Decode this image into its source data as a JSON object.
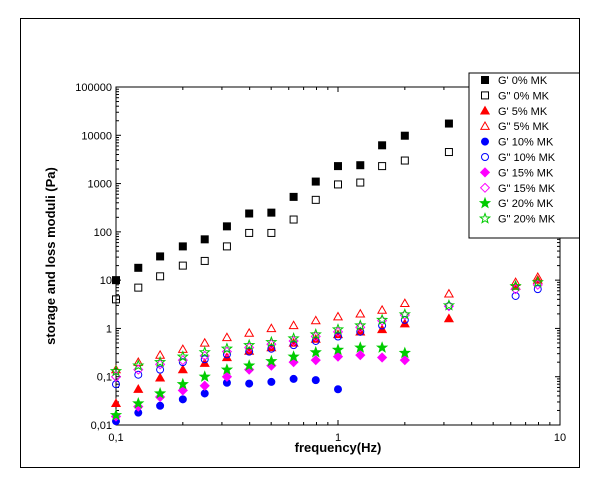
{
  "chart_data": {
    "type": "scatter",
    "title": "",
    "xlabel": "frequency(Hz)",
    "ylabel": "storage and loss moduli (Pa)",
    "x_scale": "log",
    "y_scale": "log",
    "xlim": [
      0.1,
      10
    ],
    "ylim": [
      0.01,
      100000
    ],
    "x_ticks": [
      {
        "value": 0.1,
        "label": "0,1"
      },
      {
        "value": 1,
        "label": "1"
      },
      {
        "value": 10,
        "label": "10"
      }
    ],
    "y_ticks": [
      {
        "value": 0.01,
        "label": "0,01"
      },
      {
        "value": 0.1,
        "label": "0,1"
      },
      {
        "value": 1,
        "label": "1"
      },
      {
        "value": 10,
        "label": "10"
      },
      {
        "value": 100,
        "label": "100"
      },
      {
        "value": 1000,
        "label": "1000"
      },
      {
        "value": 10000,
        "label": "10000"
      },
      {
        "value": 100000,
        "label": "100000"
      }
    ],
    "grid": false,
    "legend_position": "top-right",
    "series": [
      {
        "name": "G' 0% MK",
        "marker": "square",
        "filled": true,
        "color": "#000000",
        "x": [
          0.1,
          0.126,
          0.158,
          0.2,
          0.251,
          0.316,
          0.398,
          0.501,
          0.631,
          0.794,
          1.0,
          1.26,
          1.58,
          2.0,
          3.16
        ],
        "y": [
          10,
          18,
          31,
          50,
          70,
          130,
          240,
          250,
          530,
          1100,
          2300,
          2400,
          6200,
          9800,
          17500
        ]
      },
      {
        "name": "G\" 0% MK",
        "marker": "square",
        "filled": false,
        "color": "#000000",
        "x": [
          0.1,
          0.126,
          0.158,
          0.2,
          0.251,
          0.316,
          0.398,
          0.501,
          0.631,
          0.794,
          1.0,
          1.26,
          1.58,
          2.0,
          3.16
        ],
        "y": [
          4,
          7,
          12,
          20,
          25,
          50,
          95,
          95,
          180,
          460,
          960,
          1050,
          2300,
          3000,
          4500
        ]
      },
      {
        "name": "G' 5% MK",
        "marker": "triangle",
        "filled": true,
        "color": "#ff0000",
        "x": [
          0.1,
          0.126,
          0.158,
          0.2,
          0.251,
          0.316,
          0.398,
          0.501,
          0.631,
          0.794,
          1.0,
          1.26,
          1.58,
          2.0,
          3.16,
          6.31,
          7.94
        ],
        "y": [
          0.028,
          0.055,
          0.095,
          0.14,
          0.19,
          0.25,
          0.34,
          0.4,
          0.5,
          0.6,
          0.75,
          0.85,
          0.95,
          1.25,
          1.6,
          7.5,
          10
        ]
      },
      {
        "name": "G\" 5% MK",
        "marker": "triangle",
        "filled": false,
        "color": "#ff0000",
        "x": [
          0.1,
          0.126,
          0.158,
          0.2,
          0.251,
          0.316,
          0.398,
          0.501,
          0.631,
          0.794,
          1.0,
          1.26,
          1.58,
          2.0,
          3.16,
          6.31,
          7.94
        ],
        "y": [
          0.14,
          0.2,
          0.28,
          0.37,
          0.5,
          0.65,
          0.8,
          1.0,
          1.15,
          1.45,
          1.75,
          2.0,
          2.4,
          3.3,
          5.2,
          9,
          11.5
        ]
      },
      {
        "name": "G' 10% MK",
        "marker": "circle",
        "filled": true,
        "color": "#0000ff",
        "x": [
          0.1,
          0.126,
          0.158,
          0.2,
          0.251,
          0.316,
          0.398,
          0.501,
          0.631,
          0.794,
          1.0
        ],
        "y": [
          0.012,
          0.018,
          0.025,
          0.034,
          0.045,
          0.075,
          0.072,
          0.078,
          0.09,
          0.085,
          0.055
        ]
      },
      {
        "name": "G\" 10% MK",
        "marker": "circle",
        "filled": false,
        "color": "#0000ff",
        "x": [
          0.1,
          0.126,
          0.158,
          0.2,
          0.251,
          0.316,
          0.398,
          0.501,
          0.631,
          0.794,
          1.0,
          1.26,
          1.58,
          2.0,
          3.16,
          6.31,
          7.94
        ],
        "y": [
          0.07,
          0.11,
          0.14,
          0.2,
          0.23,
          0.29,
          0.33,
          0.38,
          0.45,
          0.55,
          0.68,
          0.85,
          1.15,
          1.5,
          2.9,
          4.7,
          6.5
        ]
      },
      {
        "name": "G' 15% MK",
        "marker": "diamond",
        "filled": true,
        "color": "#ff00ff",
        "x": [
          0.1,
          0.126,
          0.158,
          0.2,
          0.251,
          0.316,
          0.398,
          0.501,
          0.631,
          0.794,
          1.0,
          1.26,
          1.58,
          2.0
        ],
        "y": [
          0.015,
          0.024,
          0.038,
          0.052,
          0.065,
          0.1,
          0.14,
          0.17,
          0.2,
          0.22,
          0.26,
          0.28,
          0.25,
          0.22
        ]
      },
      {
        "name": "G\" 15% MK",
        "marker": "diamond",
        "filled": false,
        "color": "#ff00ff",
        "x": [
          0.1,
          0.126,
          0.158,
          0.2,
          0.251,
          0.316,
          0.398,
          0.501,
          0.631,
          0.794,
          1.0,
          1.26,
          1.58,
          2.0,
          3.16,
          6.31,
          7.94
        ],
        "y": [
          0.1,
          0.14,
          0.18,
          0.22,
          0.27,
          0.33,
          0.4,
          0.47,
          0.55,
          0.68,
          0.85,
          1.05,
          1.45,
          1.9,
          2.9,
          6.5,
          8
        ]
      },
      {
        "name": "G' 20% MK",
        "marker": "star",
        "filled": true,
        "color": "#00cc00",
        "x": [
          0.1,
          0.126,
          0.158,
          0.2,
          0.251,
          0.316,
          0.398,
          0.501,
          0.631,
          0.794,
          1.0,
          1.26,
          1.58,
          2.0
        ],
        "y": [
          0.016,
          0.028,
          0.045,
          0.07,
          0.1,
          0.14,
          0.17,
          0.21,
          0.26,
          0.32,
          0.36,
          0.4,
          0.4,
          0.31
        ]
      },
      {
        "name": "G\" 20% MK",
        "marker": "star",
        "filled": false,
        "color": "#00cc00",
        "x": [
          0.1,
          0.126,
          0.158,
          0.2,
          0.251,
          0.316,
          0.398,
          0.501,
          0.631,
          0.794,
          1.0,
          1.26,
          1.58,
          2.0,
          3.16,
          6.31,
          7.94
        ],
        "y": [
          0.13,
          0.17,
          0.2,
          0.26,
          0.32,
          0.38,
          0.45,
          0.52,
          0.62,
          0.75,
          0.95,
          1.15,
          1.5,
          1.95,
          3.0,
          7.5,
          9
        ]
      }
    ]
  }
}
